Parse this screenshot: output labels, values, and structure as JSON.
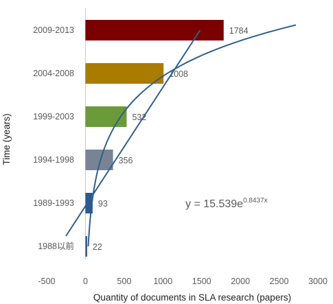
{
  "chart_data": {
    "type": "bar",
    "orientation": "horizontal",
    "categories": [
      "2009-2013",
      "2004-2008",
      "1999-2003",
      "1994-1998",
      "1989-1993",
      "1988以前"
    ],
    "values": [
      1784,
      1008,
      532,
      356,
      93,
      22
    ],
    "value_labels": [
      "1784",
      "1008",
      "532",
      "356",
      "93",
      "22"
    ],
    "bar_colors": [
      "#7b0000",
      "#a97c00",
      "#6a9a3a",
      "#788494",
      "#2a5a8e",
      "#2a5a8e"
    ],
    "xlabel": "Quantity of documents in SLA research (papers)",
    "ylabel": "Time (years)",
    "xlim": [
      -500,
      3000
    ],
    "x_ticks": [
      -500,
      0,
      500,
      1000,
      1500,
      2000,
      2500,
      3000
    ],
    "x_tick_labels": [
      "-500",
      "0",
      "500",
      "1000",
      "1500",
      "2000",
      "2500",
      "3000"
    ],
    "trendline": {
      "type": "exponential",
      "equation_main": "y = 15.539e",
      "equation_exponent": "0.8437x",
      "color": "#2f5f8c"
    },
    "grid": false,
    "legend": "none"
  }
}
